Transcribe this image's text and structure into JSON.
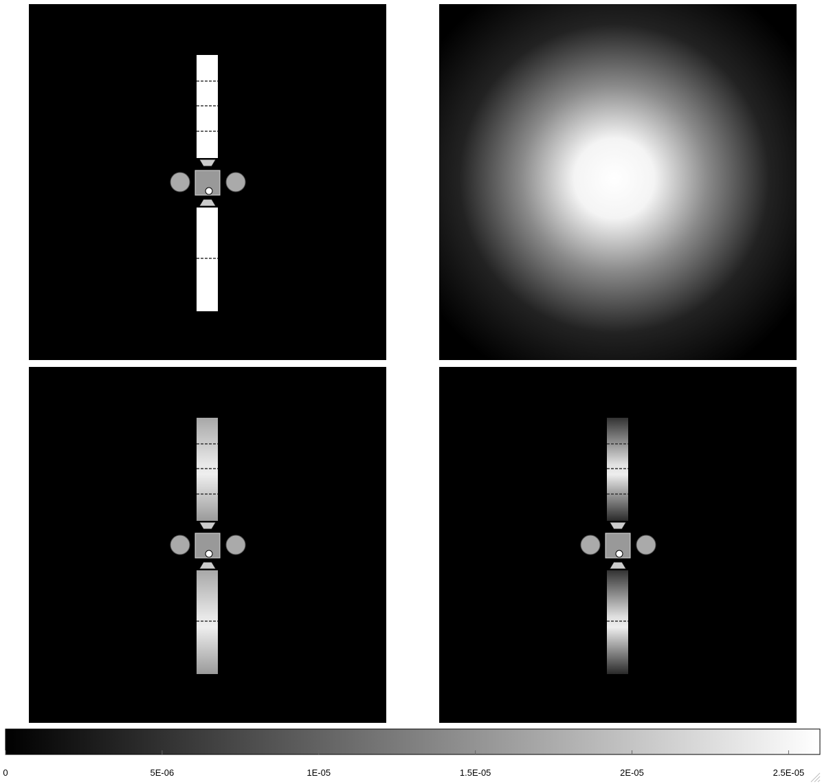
{
  "colorbar": {
    "range": [
      0,
      2.6e-05
    ],
    "ticks": [
      {
        "value": 0,
        "label": "0"
      },
      {
        "value": 5e-06,
        "label": "5E-06"
      },
      {
        "value": 1e-05,
        "label": "1E-05"
      },
      {
        "value": 1.5e-05,
        "label": "1.5E-05"
      },
      {
        "value": 2e-05,
        "label": "2E-05"
      },
      {
        "value": 2.5e-05,
        "label": "2.5E-05"
      }
    ]
  }
}
